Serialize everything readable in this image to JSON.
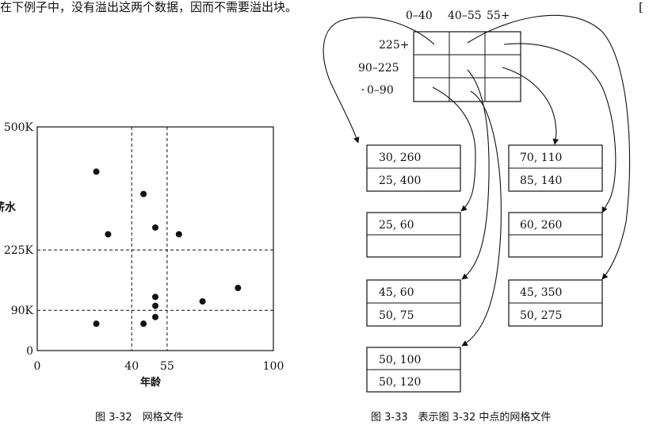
{
  "top_text": {
    "left": "在下例子中，没有溢出这两个数据，因而不需要溢出块。",
    "right": "[",
    "top_columns_label": [
      "0–40",
      "40–55",
      "55+"
    ]
  },
  "chart_data": {
    "type": "scatter",
    "title": "",
    "xlabel": "年龄",
    "ylabel": "薪水",
    "xlim": [
      0,
      100
    ],
    "ylim": [
      0,
      500
    ],
    "x_ticks": [
      "0",
      "40",
      "55",
      "100"
    ],
    "x_tick_values": [
      0,
      40,
      55,
      100
    ],
    "y_ticks": [
      "0",
      "90K",
      "225K",
      "500K"
    ],
    "y_tick_values": [
      0,
      90,
      225,
      500
    ],
    "grid_lines_x": [
      40,
      55
    ],
    "grid_lines_y": [
      90,
      225
    ],
    "points": [
      {
        "x": 25,
        "y": 400
      },
      {
        "x": 45,
        "y": 350
      },
      {
        "x": 30,
        "y": 260
      },
      {
        "x": 50,
        "y": 275
      },
      {
        "x": 60,
        "y": 260
      },
      {
        "x": 85,
        "y": 140
      },
      {
        "x": 70,
        "y": 110
      },
      {
        "x": 50,
        "y": 120
      },
      {
        "x": 50,
        "y": 100
      },
      {
        "x": 50,
        "y": 75
      },
      {
        "x": 45,
        "y": 60
      },
      {
        "x": 25,
        "y": 60
      }
    ]
  },
  "grid_file": {
    "column_labels": [
      "0–40",
      "40–55",
      "55+"
    ],
    "row_labels": [
      "225+",
      "90–225",
      "0–90"
    ],
    "buckets": [
      {
        "records": [
          "30, 260",
          "25, 400"
        ]
      },
      {
        "records": [
          "25, 60",
          ""
        ]
      },
      {
        "records": [
          "45, 60",
          "50, 75"
        ]
      },
      {
        "records": [
          "50, 100",
          "50, 120"
        ]
      },
      {
        "records": [
          "70, 110",
          "85, 140"
        ]
      },
      {
        "records": [
          "60, 260",
          ""
        ]
      },
      {
        "records": [
          "45, 350",
          "50, 275"
        ]
      }
    ]
  },
  "captions": {
    "left": "图 3-32　网格文件",
    "right": "图 3-33　表示图 3-32 中点的网格文件"
  }
}
